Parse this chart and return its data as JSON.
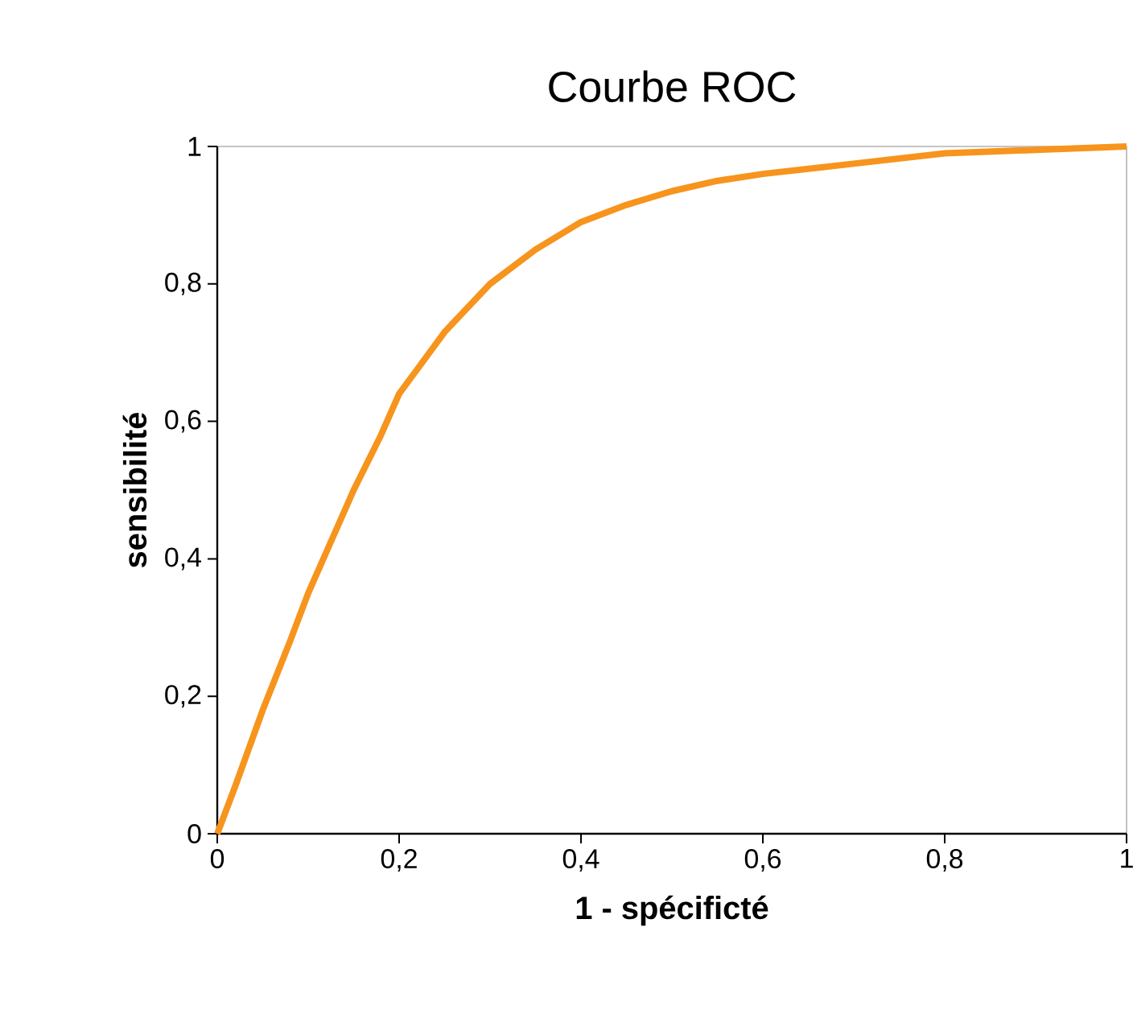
{
  "chart_data": {
    "type": "line",
    "title": "Courbe ROC",
    "xlabel": "1 - spécificté",
    "ylabel": "sensibilité",
    "x": [
      0,
      0.02,
      0.05,
      0.08,
      0.1,
      0.13,
      0.15,
      0.18,
      0.2,
      0.25,
      0.3,
      0.35,
      0.4,
      0.45,
      0.5,
      0.55,
      0.6,
      0.7,
      0.8,
      0.9,
      1
    ],
    "series": [
      {
        "color": "#f7941d",
        "values": [
          0,
          0.07,
          0.18,
          0.28,
          0.35,
          0.44,
          0.5,
          0.58,
          0.64,
          0.73,
          0.8,
          0.85,
          0.89,
          0.915,
          0.935,
          0.95,
          0.96,
          0.975,
          0.99,
          0.995,
          1
        ]
      }
    ],
    "xlim": [
      0,
      1
    ],
    "ylim": [
      0,
      1
    ],
    "xticks": [
      0,
      {
        "value": 0.2,
        "label": "0,2"
      },
      {
        "value": 0.4,
        "label": "0,4"
      },
      {
        "value": 0.6,
        "label": "0,6"
      },
      {
        "value": 0.8,
        "label": "0,8"
      },
      1
    ],
    "yticks": [
      0,
      {
        "value": 0.2,
        "label": "0,2"
      },
      {
        "value": 0.4,
        "label": "0,4"
      },
      {
        "value": 0.6,
        "label": "0,6"
      },
      {
        "value": 0.8,
        "label": "0,8"
      },
      1
    ],
    "marker": "none",
    "line_style": "solid"
  }
}
